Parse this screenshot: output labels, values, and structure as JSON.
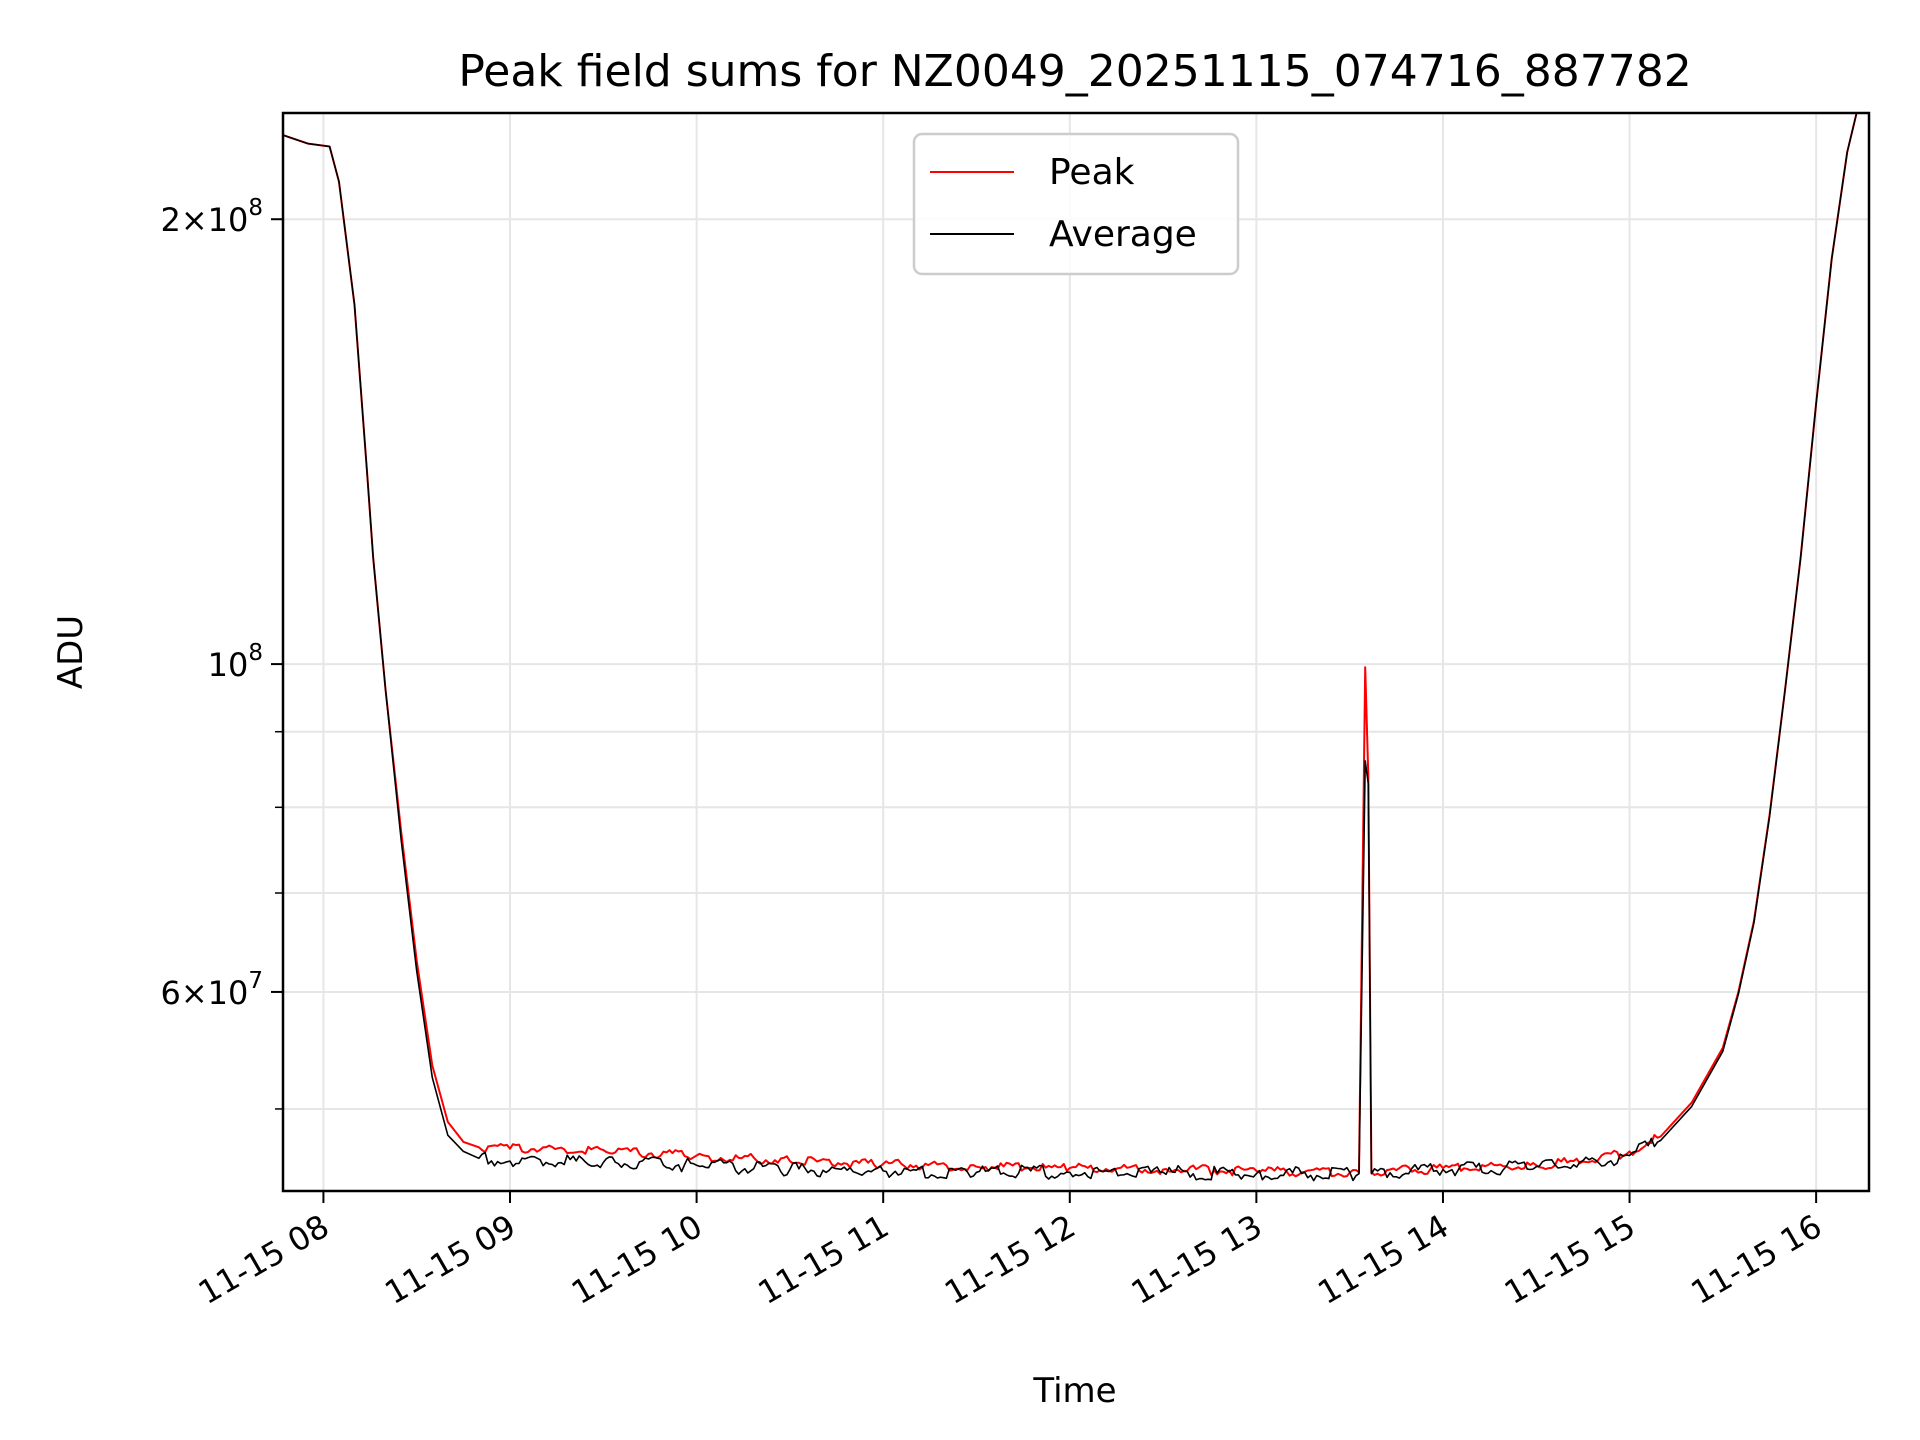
{
  "chart_data": {
    "type": "line",
    "title": "Peak field sums for NZ0049_20251115_074716_887782",
    "xlabel": "Time",
    "ylabel": "ADU",
    "yscale": "log",
    "ylim": [
      44000000,
      236000000
    ],
    "xlim": [
      "11-15 07:47",
      "11-15 16:17"
    ],
    "grid": true,
    "legend_position": "upper-center",
    "x_ticks": [
      "11-15 08",
      "11-15 09",
      "11-15 10",
      "11-15 11",
      "11-15 12",
      "11-15 13",
      "11-15 14",
      "11-15 15",
      "11-15 16"
    ],
    "y_ticks": [
      {
        "value": 200000000,
        "base": "2",
        "exp": "8",
        "label_style": "mantissa"
      },
      {
        "value": 100000000,
        "base": "10",
        "exp": "8",
        "label_style": "power"
      },
      {
        "value": 60000000,
        "base": "6",
        "exp": "7",
        "label_style": "mantissa"
      }
    ],
    "series": [
      {
        "name": "Peak",
        "color": "#ff0000",
        "points": [
          [
            "11-15 07:47",
            228000000
          ],
          [
            "11-15 07:55",
            225000000
          ],
          [
            "11-15 08:02",
            224000000
          ],
          [
            "11-15 08:05",
            212000000
          ],
          [
            "11-15 08:10",
            175000000
          ],
          [
            "11-15 08:14",
            135000000
          ],
          [
            "11-15 08:16",
            118000000
          ],
          [
            "11-15 08:20",
            96000000
          ],
          [
            "11-15 08:25",
            77000000
          ],
          [
            "11-15 08:30",
            63000000
          ],
          [
            "11-15 08:35",
            53500000
          ],
          [
            "11-15 08:40",
            49000000
          ],
          [
            "11-15 08:45",
            47500000
          ],
          [
            "11-15 08:50",
            47100000
          ],
          [
            "11-15 09:00",
            47000000
          ],
          [
            "11-15 09:30",
            46900000
          ],
          [
            "11-15 10:00",
            46500000
          ],
          [
            "11-15 10:30",
            46100000
          ],
          [
            "11-15 11:00",
            45900000
          ],
          [
            "11-15 11:30",
            45700000
          ],
          [
            "11-15 12:00",
            45600000
          ],
          [
            "11-15 12:30",
            45500000
          ],
          [
            "11-15 13:00",
            45400000
          ],
          [
            "11-15 13:33",
            45300000
          ],
          [
            "11-15 13:35",
            99500000
          ],
          [
            "11-15 13:36",
            84000000
          ],
          [
            "11-15 13:37",
            45300000
          ],
          [
            "11-15 14:00",
            45600000
          ],
          [
            "11-15 14:30",
            45800000
          ],
          [
            "11-15 14:50",
            46200000
          ],
          [
            "11-15 15:00",
            46800000
          ],
          [
            "11-15 15:10",
            47900000
          ],
          [
            "11-15 15:20",
            50500000
          ],
          [
            "11-15 15:30",
            55000000
          ],
          [
            "11-15 15:35",
            60000000
          ],
          [
            "11-15 15:40",
            67000000
          ],
          [
            "11-15 15:45",
            79000000
          ],
          [
            "11-15 15:50",
            96000000
          ],
          [
            "11-15 15:55",
            118000000
          ],
          [
            "11-15 16:00",
            150000000
          ],
          [
            "11-15 16:05",
            188000000
          ],
          [
            "11-15 16:10",
            222000000
          ],
          [
            "11-15 16:13",
            236000000
          ],
          [
            "11-15 16:17",
            236000000
          ]
        ]
      },
      {
        "name": "Average",
        "color": "#000000",
        "points": [
          [
            "11-15 07:47",
            228000000
          ],
          [
            "11-15 07:55",
            225000000
          ],
          [
            "11-15 08:02",
            224000000
          ],
          [
            "11-15 08:05",
            212000000
          ],
          [
            "11-15 08:10",
            175000000
          ],
          [
            "11-15 08:14",
            135000000
          ],
          [
            "11-15 08:16",
            118000000
          ],
          [
            "11-15 08:20",
            96000000
          ],
          [
            "11-15 08:25",
            76000000
          ],
          [
            "11-15 08:30",
            62000000
          ],
          [
            "11-15 08:35",
            52500000
          ],
          [
            "11-15 08:40",
            48000000
          ],
          [
            "11-15 08:45",
            46800000
          ],
          [
            "11-15 08:50",
            46300000
          ],
          [
            "11-15 09:00",
            46100000
          ],
          [
            "11-15 09:30",
            46000000
          ],
          [
            "11-15 10:00",
            45800000
          ],
          [
            "11-15 10:30",
            45500000
          ],
          [
            "11-15 11:00",
            45400000
          ],
          [
            "11-15 11:30",
            45300000
          ],
          [
            "11-15 12:00",
            45300000
          ],
          [
            "11-15 12:30",
            45300000
          ],
          [
            "11-15 13:00",
            45200000
          ],
          [
            "11-15 13:33",
            45200000
          ],
          [
            "11-15 13:35",
            86000000
          ],
          [
            "11-15 13:36",
            83000000
          ],
          [
            "11-15 13:37",
            45200000
          ],
          [
            "11-15 14:00",
            45500000
          ],
          [
            "11-15 14:30",
            45700000
          ],
          [
            "11-15 14:50",
            46000000
          ],
          [
            "11-15 15:00",
            46500000
          ],
          [
            "11-15 15:10",
            47600000
          ],
          [
            "11-15 15:20",
            50200000
          ],
          [
            "11-15 15:30",
            54700000
          ],
          [
            "11-15 15:35",
            59800000
          ],
          [
            "11-15 15:40",
            66800000
          ],
          [
            "11-15 15:45",
            78800000
          ],
          [
            "11-15 15:50",
            96000000
          ],
          [
            "11-15 15:55",
            118000000
          ],
          [
            "11-15 16:00",
            150000000
          ],
          [
            "11-15 16:05",
            188000000
          ],
          [
            "11-15 16:10",
            222000000
          ],
          [
            "11-15 16:13",
            236000000
          ],
          [
            "11-15 16:17",
            236000000
          ]
        ]
      }
    ]
  }
}
